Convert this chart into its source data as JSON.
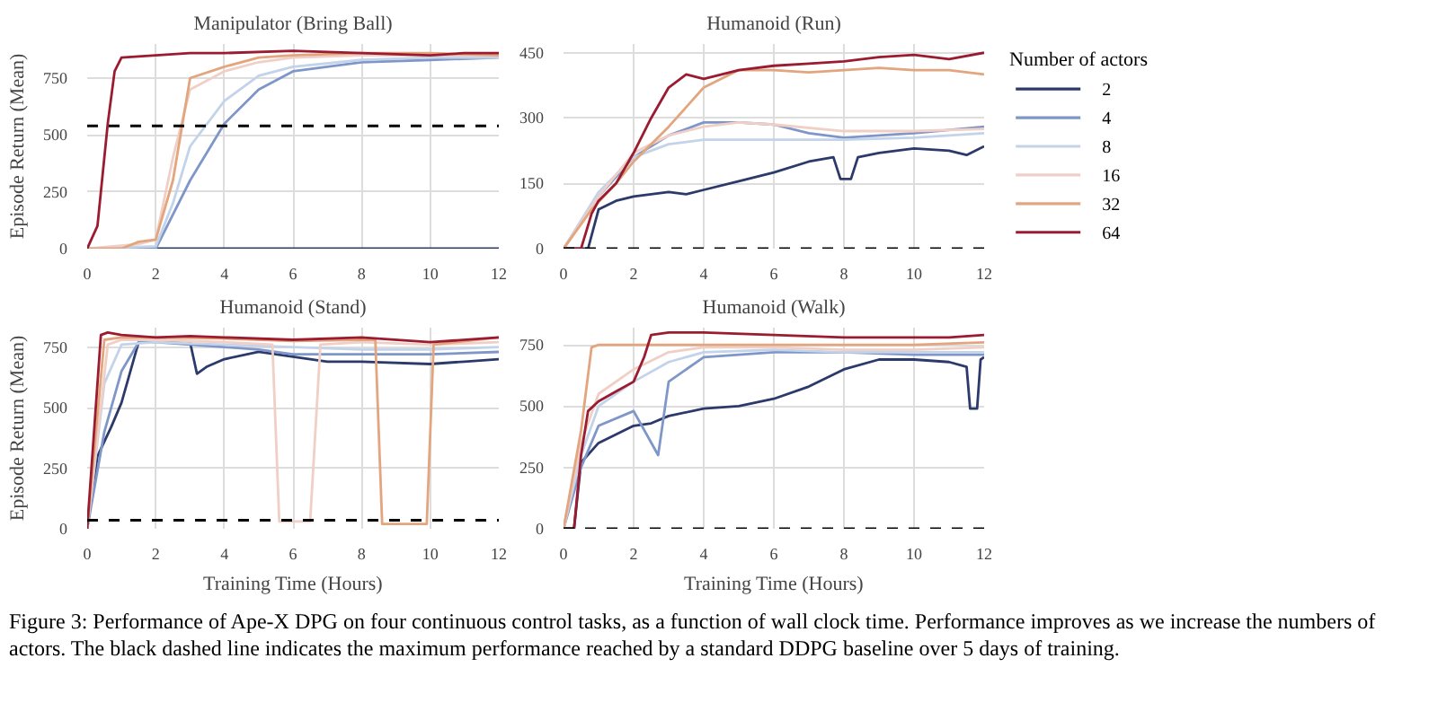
{
  "chart_data": [
    {
      "type": "line",
      "title": "Manipulator (Bring Ball)",
      "ylabel": "Episode Return (Mean)",
      "xlim": [
        0,
        12
      ],
      "ylim": [
        0,
        900
      ],
      "xticks": [
        0,
        2,
        4,
        6,
        8,
        10,
        12
      ],
      "yticks": [
        0,
        250,
        500,
        750
      ],
      "grid": true,
      "line_style": "solid",
      "ref_lines": [
        {
          "axis": "y",
          "value": 540,
          "color": "#000000",
          "line_style": "dashed"
        }
      ],
      "annotations": [
        "Figure 3: Performance of Ape-X DPG on four continuous control tasks, as a function of wall clock time. Performance improves as we increase the numbers of actors. The black dashed line indicates the maximum performance reached by a standard DDPG baseline over 5 days of training."
      ],
      "series": [
        {
          "color": "#2b3a6b",
          "x": [
            0,
            2,
            4,
            6,
            8,
            10,
            12
          ],
          "values": [
            0,
            0,
            0,
            0,
            0,
            0,
            0
          ]
        },
        {
          "color": "#7f96c8",
          "x": [
            0,
            2,
            3,
            4,
            5,
            6,
            8,
            10,
            12
          ],
          "values": [
            0,
            0,
            300,
            550,
            700,
            780,
            820,
            830,
            840
          ]
        },
        {
          "color": "#c3d3ea",
          "x": [
            0,
            2,
            2.5,
            3,
            4,
            5,
            6,
            8,
            10,
            12
          ],
          "values": [
            0,
            10,
            200,
            450,
            650,
            760,
            800,
            830,
            840,
            840
          ]
        },
        {
          "color": "#f0cfc6",
          "x": [
            0,
            1.5,
            2,
            2.5,
            3,
            4,
            5,
            6,
            8,
            10,
            12
          ],
          "values": [
            0,
            20,
            40,
            400,
            700,
            780,
            820,
            840,
            850,
            850,
            850
          ]
        },
        {
          "color": "#e3a57e",
          "x": [
            0,
            1,
            1.5,
            2,
            2.5,
            3,
            4,
            5,
            6,
            8,
            10,
            12
          ],
          "values": [
            0,
            0,
            30,
            40,
            300,
            750,
            800,
            840,
            850,
            860,
            860,
            850
          ]
        },
        {
          "color": "#9b1c31",
          "x": [
            0,
            0.3,
            0.6,
            0.8,
            1,
            2,
            3,
            4,
            6,
            8,
            10,
            11,
            12
          ],
          "values": [
            0,
            100,
            550,
            780,
            840,
            850,
            860,
            860,
            870,
            860,
            850,
            860,
            860
          ]
        }
      ]
    },
    {
      "type": "line",
      "title": "Humanoid (Run)",
      "xlim": [
        0,
        12
      ],
      "ylim": [
        0,
        470
      ],
      "xticks": [
        0,
        2,
        4,
        6,
        8,
        10,
        12
      ],
      "yticks": [
        0,
        150,
        300,
        450
      ],
      "grid": true,
      "line_style": "solid",
      "legend": "right",
      "legend_title": "Number of actors",
      "ref_lines": [
        {
          "axis": "y",
          "value": 0,
          "color": "#000000",
          "line_style": "dashed"
        }
      ],
      "series": [
        {
          "name": "2",
          "color": "#2b3a6b",
          "x": [
            0,
            0.7,
            1,
            1.5,
            2,
            3,
            3.5,
            4,
            5,
            6,
            7,
            7.7,
            7.9,
            8.2,
            8.4,
            9,
            10,
            11,
            11.5,
            12
          ],
          "values": [
            0,
            0,
            90,
            110,
            120,
            130,
            125,
            135,
            155,
            175,
            200,
            210,
            160,
            160,
            210,
            220,
            230,
            225,
            215,
            235
          ]
        },
        {
          "name": "4",
          "color": "#7f96c8",
          "x": [
            0,
            1,
            2,
            3,
            4,
            5,
            6,
            7,
            8,
            10,
            12
          ],
          "values": [
            0,
            120,
            210,
            260,
            290,
            290,
            285,
            265,
            255,
            265,
            280
          ]
        },
        {
          "name": "8",
          "color": "#c3d3ea",
          "x": [
            0,
            1,
            2,
            3,
            4,
            5,
            6,
            8,
            10,
            12
          ],
          "values": [
            0,
            130,
            210,
            240,
            250,
            250,
            250,
            250,
            255,
            265
          ]
        },
        {
          "name": "16",
          "color": "#f0cfc6",
          "x": [
            0,
            1,
            2,
            3,
            4,
            5,
            6,
            8,
            10,
            12
          ],
          "values": [
            0,
            120,
            220,
            260,
            280,
            290,
            285,
            270,
            270,
            275
          ]
        },
        {
          "name": "32",
          "color": "#e3a57e",
          "x": [
            0,
            0.8,
            1.5,
            2,
            3,
            4,
            5,
            6,
            7,
            8,
            9,
            10,
            11,
            12
          ],
          "values": [
            0,
            90,
            150,
            200,
            280,
            370,
            410,
            410,
            405,
            410,
            415,
            410,
            410,
            400
          ]
        },
        {
          "name": "64",
          "color": "#9b1c31",
          "x": [
            0,
            0.5,
            0.8,
            1,
            1.5,
            2,
            2.5,
            3,
            3.5,
            4,
            5,
            6,
            7,
            8,
            9,
            10,
            11,
            12
          ],
          "values": [
            0,
            0,
            80,
            110,
            150,
            220,
            300,
            370,
            400,
            390,
            410,
            420,
            425,
            430,
            440,
            445,
            435,
            450
          ]
        }
      ]
    },
    {
      "type": "line",
      "title": "Humanoid (Stand)",
      "xlabel": "Training Time (Hours)",
      "ylabel": "Episode Return (Mean)",
      "xlim": [
        0,
        12
      ],
      "ylim": [
        0,
        830
      ],
      "xticks": [
        0,
        2,
        4,
        6,
        8,
        10,
        12
      ],
      "yticks": [
        0,
        250,
        500,
        750
      ],
      "grid": true,
      "line_style": "solid",
      "ref_lines": [
        {
          "axis": "y",
          "value": 35,
          "color": "#000000",
          "line_style": "dashed"
        }
      ],
      "series": [
        {
          "color": "#2b3a6b",
          "x": [
            0,
            0.3,
            0.7,
            1,
            1.5,
            2,
            3,
            3.2,
            3.5,
            4,
            5,
            6,
            7,
            8,
            10,
            11,
            12
          ],
          "values": [
            0,
            300,
            420,
            520,
            770,
            780,
            770,
            640,
            670,
            700,
            730,
            710,
            690,
            690,
            680,
            690,
            700
          ]
        },
        {
          "color": "#7f96c8",
          "x": [
            0,
            0.5,
            1,
            1.5,
            2,
            3,
            4,
            5,
            6,
            8,
            10,
            12
          ],
          "values": [
            0,
            400,
            650,
            770,
            770,
            760,
            750,
            740,
            720,
            720,
            720,
            730
          ]
        },
        {
          "color": "#c3d3ea",
          "x": [
            0,
            0.5,
            1,
            2,
            4,
            6,
            8,
            10,
            12
          ],
          "values": [
            0,
            600,
            760,
            770,
            760,
            750,
            740,
            740,
            750
          ]
        },
        {
          "color": "#f0cfc6",
          "x": [
            0,
            0.6,
            1,
            2,
            4,
            5.4,
            5.6,
            6.5,
            6.8,
            8,
            10,
            12
          ],
          "values": [
            0,
            760,
            780,
            780,
            770,
            760,
            30,
            30,
            760,
            770,
            760,
            770
          ]
        },
        {
          "color": "#e3a57e",
          "x": [
            0,
            0.5,
            1,
            2,
            4,
            6,
            8,
            8.4,
            8.6,
            9.9,
            10.1,
            12
          ],
          "values": [
            0,
            780,
            790,
            790,
            785,
            775,
            780,
            780,
            20,
            20,
            760,
            790
          ]
        },
        {
          "color": "#9b1c31",
          "x": [
            0,
            0.4,
            0.6,
            1,
            2,
            3,
            4,
            6,
            8,
            10,
            12
          ],
          "values": [
            0,
            800,
            810,
            800,
            790,
            795,
            790,
            780,
            790,
            770,
            790
          ]
        }
      ]
    },
    {
      "type": "line",
      "title": "Humanoid (Walk)",
      "xlabel": "Training Time (Hours)",
      "xlim": [
        0,
        12
      ],
      "ylim": [
        0,
        820
      ],
      "xticks": [
        0,
        2,
        4,
        6,
        8,
        10,
        12
      ],
      "yticks": [
        0,
        250,
        500,
        750
      ],
      "grid": true,
      "line_style": "solid",
      "ref_lines": [
        {
          "axis": "y",
          "value": 0,
          "color": "#000000",
          "line_style": "dashed"
        }
      ],
      "series": [
        {
          "color": "#2b3a6b",
          "x": [
            0,
            0.3,
            0.5,
            1,
            2,
            2.5,
            3,
            4,
            5,
            6,
            7,
            8,
            9,
            10,
            11,
            11.5,
            11.6,
            11.8,
            11.9,
            12
          ],
          "values": [
            0,
            0,
            270,
            350,
            420,
            430,
            460,
            490,
            500,
            530,
            580,
            650,
            690,
            690,
            680,
            660,
            490,
            490,
            690,
            700
          ]
        },
        {
          "color": "#7f96c8",
          "x": [
            0,
            0.5,
            1,
            2,
            2.7,
            3,
            4,
            6,
            8,
            10,
            12
          ],
          "values": [
            0,
            250,
            420,
            480,
            300,
            600,
            700,
            720,
            720,
            710,
            710
          ]
        },
        {
          "color": "#c3d3ea",
          "x": [
            0,
            0.5,
            1,
            2,
            3,
            4,
            6,
            8,
            10,
            12
          ],
          "values": [
            0,
            300,
            500,
            600,
            680,
            720,
            730,
            720,
            720,
            720
          ]
        },
        {
          "color": "#f0cfc6",
          "x": [
            0,
            0.5,
            1,
            2,
            3,
            4,
            6,
            8,
            10,
            12
          ],
          "values": [
            0,
            350,
            550,
            650,
            720,
            740,
            740,
            730,
            730,
            740
          ]
        },
        {
          "color": "#e3a57e",
          "x": [
            0,
            0.5,
            0.8,
            1,
            2,
            3,
            4,
            6,
            8,
            10,
            12
          ],
          "values": [
            0,
            400,
            740,
            750,
            750,
            750,
            750,
            750,
            750,
            750,
            760
          ]
        },
        {
          "color": "#9b1c31",
          "x": [
            0,
            0.3,
            0.5,
            0.7,
            1,
            1.5,
            2,
            2.3,
            2.5,
            3,
            4,
            6,
            8,
            10,
            11,
            12
          ],
          "values": [
            0,
            0,
            300,
            480,
            520,
            560,
            600,
            700,
            790,
            800,
            800,
            790,
            780,
            780,
            780,
            790
          ]
        }
      ]
    }
  ]
}
